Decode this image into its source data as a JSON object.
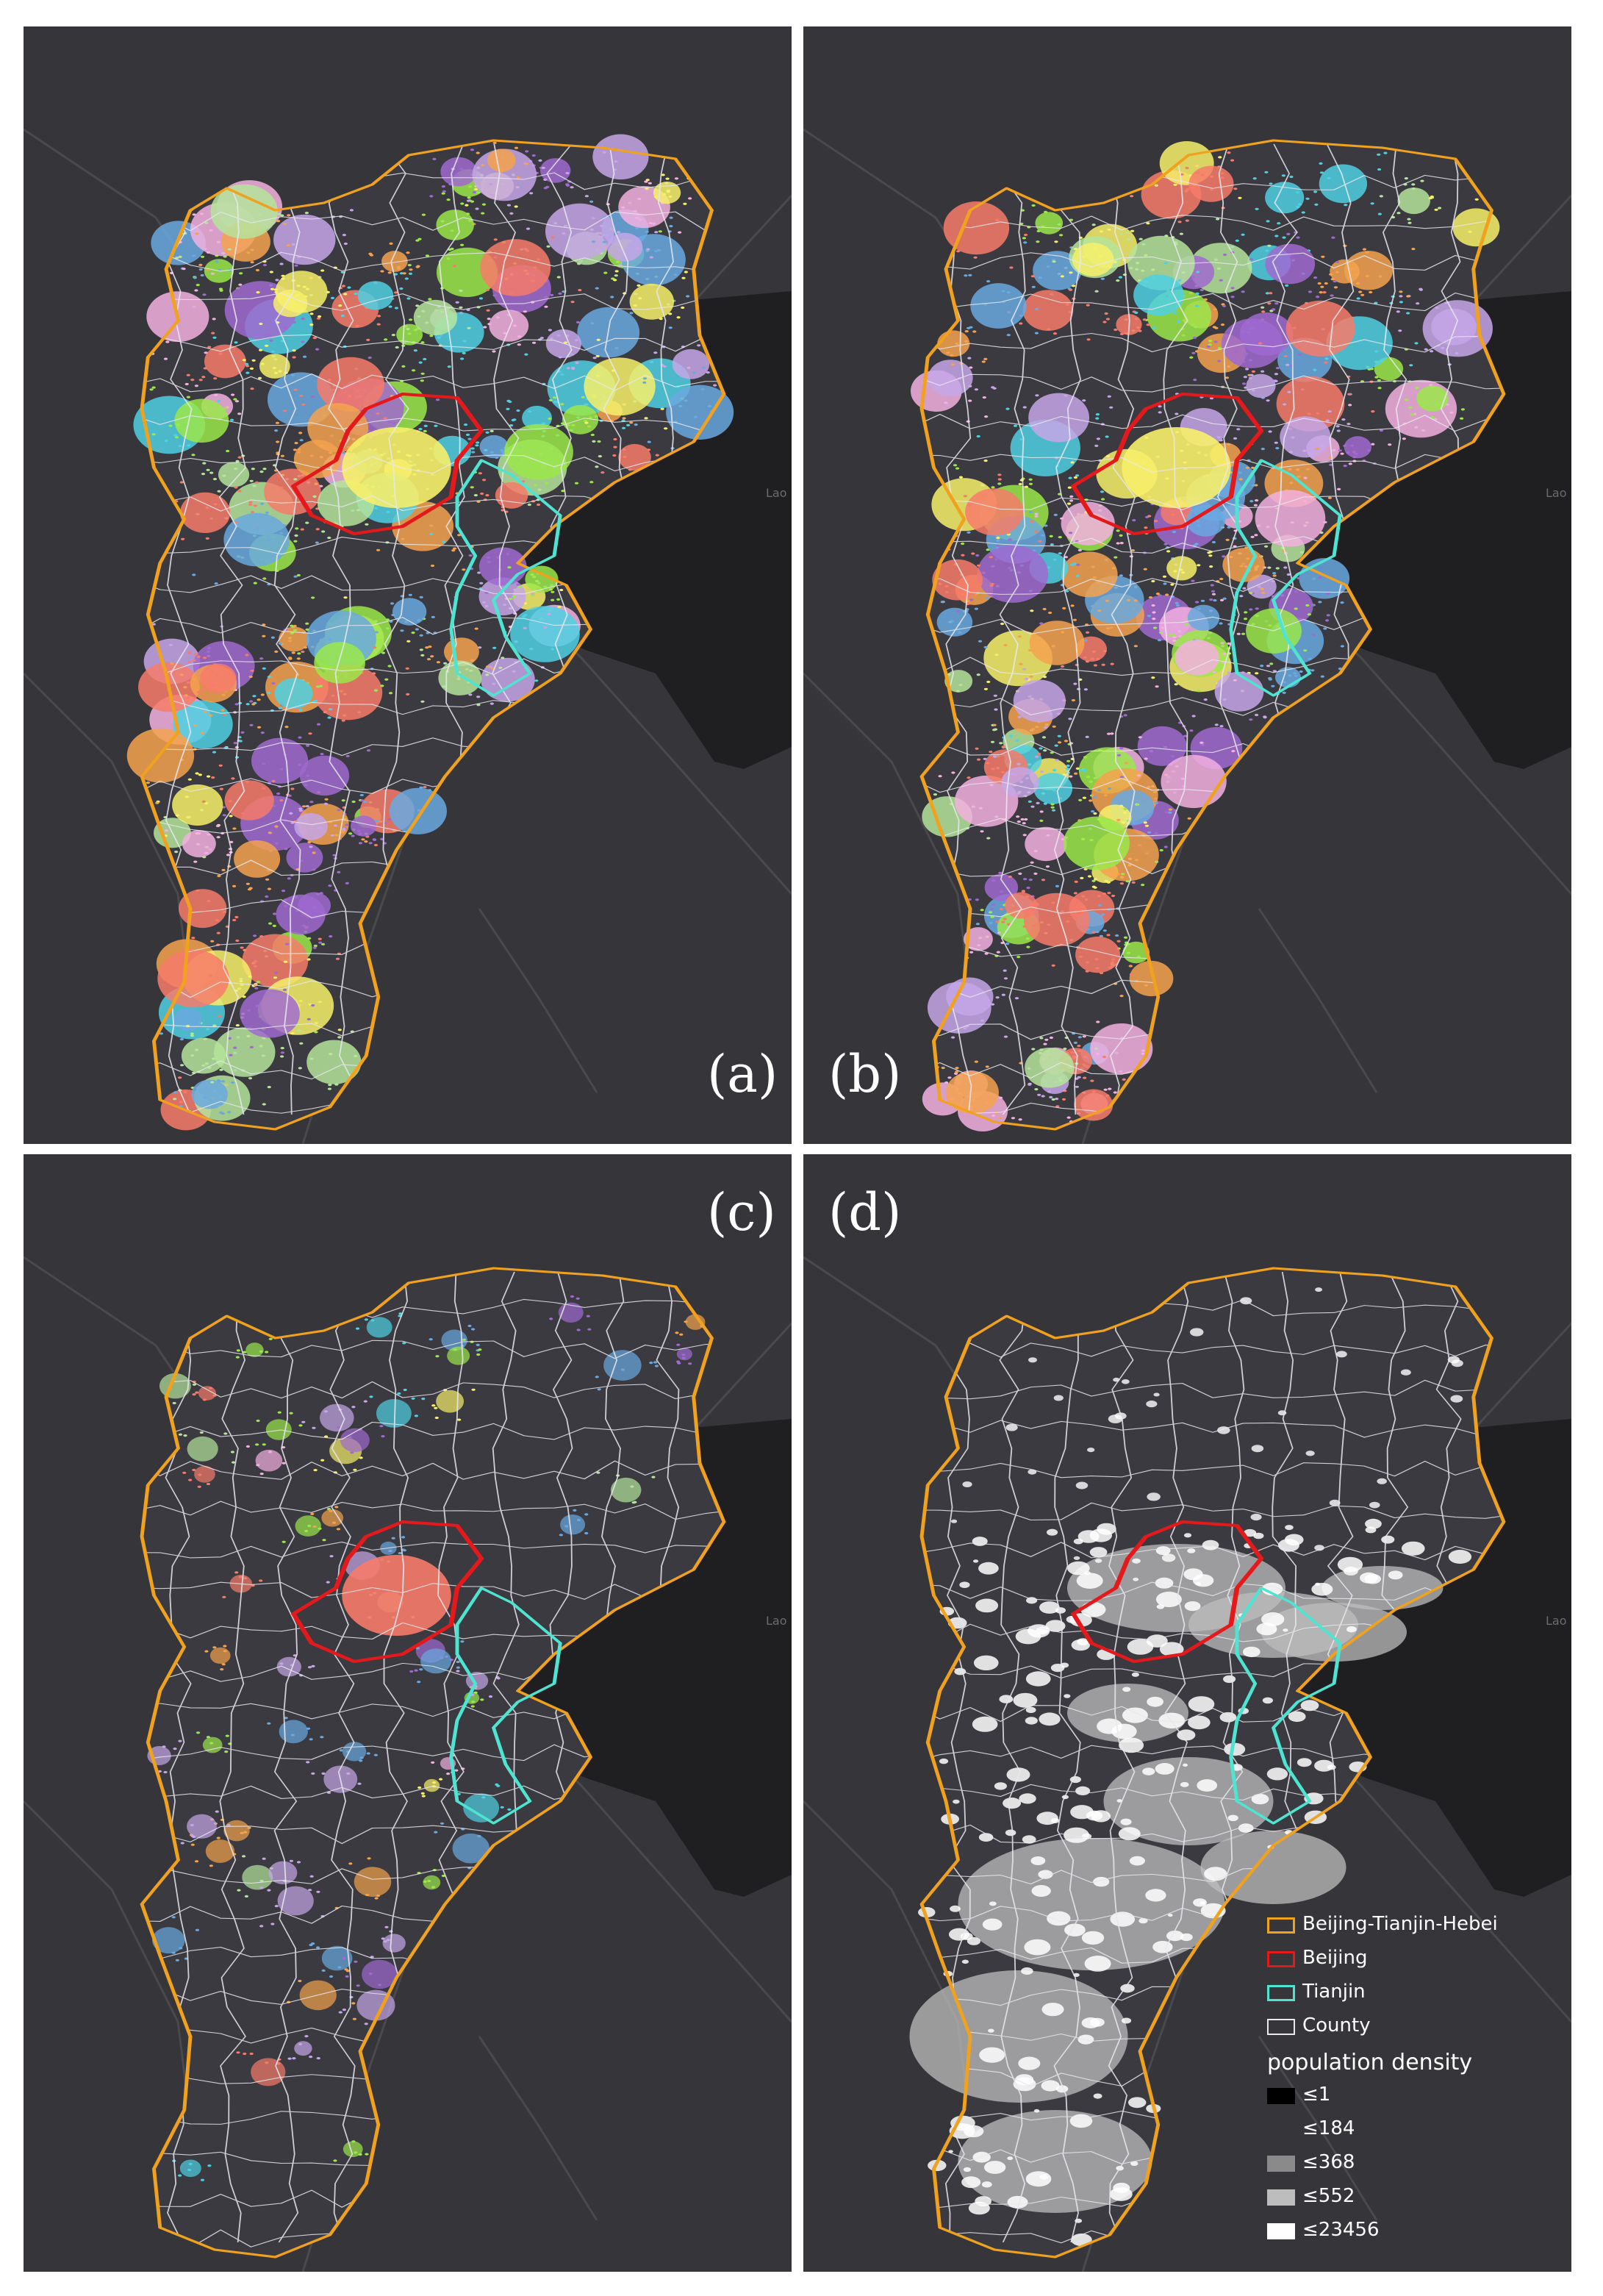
{
  "panels": [
    {
      "id": "a",
      "label": "(a)",
      "variant": "clusters-dense"
    },
    {
      "id": "b",
      "label": "(b)",
      "variant": "clusters-dense"
    },
    {
      "id": "c",
      "label": "(c)",
      "variant": "clusters-sparse"
    },
    {
      "id": "d",
      "label": "(d)",
      "variant": "population-density"
    }
  ],
  "basemap": {
    "sea_label": "Lao",
    "colors": {
      "background": "#36353a",
      "sea": "#1f1f22",
      "roads": "#4a494e"
    }
  },
  "boundaries": {
    "region": {
      "label": "Beijing-Tianjin-Hebei",
      "color": "#f0a11e"
    },
    "beijing": {
      "label": "Beijing",
      "color": "#e3191c"
    },
    "tianjin": {
      "label": "Tianjin",
      "color": "#4fe3d1"
    },
    "county": {
      "label": "County",
      "color": "#e8e8ee"
    }
  },
  "cluster_palette": [
    "#f7f06a",
    "#f77b6a",
    "#6aa9e0",
    "#a06ad0",
    "#9be84a",
    "#f4a24d",
    "#f3b0e0",
    "#c6a6e8",
    "#4fd0e3",
    "#b5e49b"
  ],
  "legend": {
    "items": [
      {
        "label": "Beijing-Tianjin-Hebei",
        "color": "#f0a11e"
      },
      {
        "label": "Beijing",
        "color": "#e3191c"
      },
      {
        "label": "Tianjin",
        "color": "#4fe3d1"
      },
      {
        "label": "County",
        "color": "#e8e8ee"
      }
    ],
    "density_title": "population density",
    "density_classes": [
      {
        "label": "≤1",
        "color": "#000000"
      },
      {
        "label": "≤184",
        "color": "#36353a"
      },
      {
        "label": "≤368",
        "color": "#8a8a8a"
      },
      {
        "label": "≤552",
        "color": "#bdbdbd"
      },
      {
        "label": "≤23456",
        "color": "#ffffff"
      }
    ]
  }
}
